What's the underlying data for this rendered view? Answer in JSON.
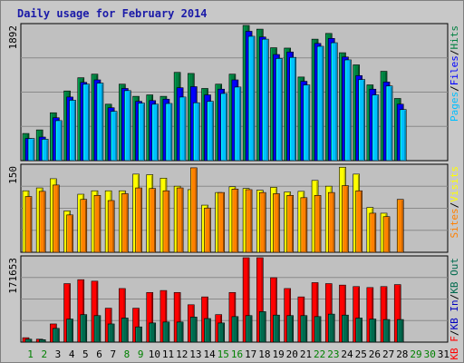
{
  "chart_data": {
    "type": "bar",
    "title": "Daily usage for February 2014",
    "days": [
      "1",
      "2",
      "3",
      "4",
      "5",
      "6",
      "7",
      "8",
      "9",
      "10",
      "11",
      "12",
      "13",
      "14",
      "15",
      "16",
      "17",
      "18",
      "19",
      "20",
      "21",
      "22",
      "23",
      "24",
      "25",
      "26",
      "27",
      "28",
      "29",
      "30",
      "31"
    ],
    "weekend_days": [
      "1",
      "2",
      "8",
      "9",
      "15",
      "16",
      "22",
      "23",
      "29",
      "30"
    ],
    "colors": {
      "pages": "#00bfff",
      "files": "#0000ff",
      "hits": "#008040",
      "sites": "#ff8000",
      "visits": "#ffff00",
      "kb_in": "#0000c0",
      "kb_out": "#006a4e",
      "kb_f": "#ff0000",
      "weekday": "#000000",
      "weekend": "#008000",
      "title": "#1a1aa8"
    },
    "panels": [
      {
        "max_label": "1892",
        "ylim": [
          0,
          1892
        ],
        "legend": [
          {
            "text": "Pages",
            "color": "#00bfff"
          },
          {
            "text": "/",
            "color": "#000000"
          },
          {
            "text": "Files",
            "color": "#0000ff"
          },
          {
            "text": "/",
            "color": "#000000"
          },
          {
            "text": "Hits",
            "color": "#008040"
          }
        ],
        "series": [
          {
            "name": "Hits",
            "color": "#008040",
            "values": [
              380,
              430,
              670,
              975,
              1160,
              1210,
              790,
              1070,
              900,
              920,
              900,
              1235,
              1220,
              1010,
              1070,
              1210,
              1892,
              1840,
              1580,
              1575,
              1170,
              1700,
              1780,
              1510,
              1340,
              1060,
              1250,
              870,
              0,
              0,
              0
            ]
          },
          {
            "name": "Files",
            "color": "#0000ff",
            "values": [
              310,
              330,
              600,
              890,
              1095,
              1130,
              740,
              1010,
              830,
              840,
              860,
              1020,
              1035,
              920,
              1000,
              1130,
              1810,
              1730,
              1485,
              1520,
              1110,
              1640,
              1710,
              1450,
              1190,
              1000,
              1100,
              790,
              0,
              0,
              0
            ]
          },
          {
            "name": "Pages",
            "color": "#00bfff",
            "values": [
              310,
              300,
              560,
              845,
              1070,
              1085,
              690,
              980,
              805,
              790,
              800,
              890,
              810,
              830,
              940,
              1030,
              1740,
              1700,
              1430,
              1445,
              1060,
              1600,
              1650,
              1410,
              1135,
              920,
              1045,
              715,
              0,
              0,
              0
            ]
          }
        ]
      },
      {
        "max_label": "150",
        "ylim": [
          0,
          150
        ],
        "legend": [
          {
            "text": "Sites",
            "color": "#ff8000"
          },
          {
            "text": "/",
            "color": "#000000"
          },
          {
            "text": "Visits",
            "color": "#ffff00"
          }
        ],
        "series": [
          {
            "name": "Visits",
            "color": "#ffff00",
            "values": [
              107,
              112,
              128,
              72,
              101,
              107,
              107,
              107,
              136,
              135,
              129,
              115,
              109,
              82,
              104,
              114,
              111,
              108,
              113,
              105,
              106,
              125,
              115,
              148,
              136,
              78,
              68,
              0,
              0,
              0,
              0
            ]
          },
          {
            "name": "Sites",
            "color": "#ff8000",
            "values": [
              97,
              106,
              117,
              65,
              92,
              99,
              90,
              102,
              112,
              111,
              107,
              112,
              147,
              77,
              104,
              110,
              109,
              104,
              102,
              99,
              95,
              99,
              104,
              116,
              107,
              68,
              62,
              92,
              0,
              0,
              0
            ]
          }
        ]
      },
      {
        "max_label": "171653",
        "ylim": [
          0,
          171653
        ],
        "legend": [
          {
            "text": "KB F",
            "color": "#ff0000"
          },
          {
            "text": "/",
            "color": "#000000"
          },
          {
            "text": "KB In",
            "color": "#0000c0"
          },
          {
            "text": "/",
            "color": "#000000"
          },
          {
            "text": "KB Out",
            "color": "#006a4e"
          }
        ],
        "series": [
          {
            "name": "KB F",
            "color": "#ff0000",
            "values": [
              9000,
              6000,
              37000,
              119000,
              127000,
              124000,
              69000,
              109000,
              69000,
              101000,
              105000,
              101000,
              76000,
              92000,
              56000,
              101000,
              171653,
              171653,
              131000,
              109000,
              92000,
              121000,
              119000,
              116000,
              113000,
              111000,
              113000,
              117000,
              0,
              0,
              0
            ]
          },
          {
            "name": "KB Out",
            "color": "#006a4e",
            "values": [
              6000,
              5000,
              28000,
              47000,
              56000,
              54000,
              37000,
              49000,
              31000,
              39000,
              41000,
              41000,
              51000,
              48000,
              39000,
              52000,
              54000,
              62000,
              55000,
              54000,
              54000,
              52000,
              57000,
              55000,
              49000,
              47000,
              46000,
              46000,
              0,
              0,
              0
            ]
          }
        ]
      }
    ]
  }
}
